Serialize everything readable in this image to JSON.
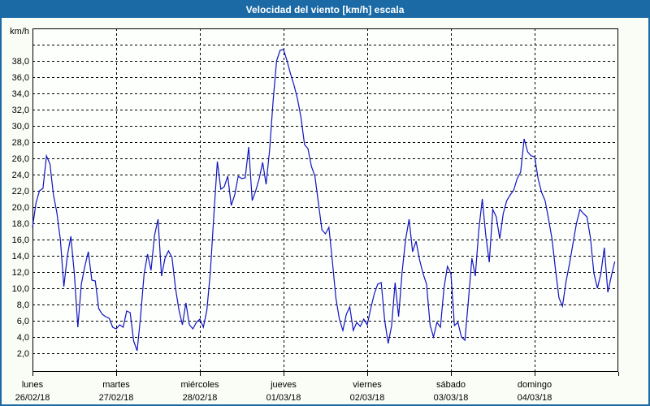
{
  "window": {
    "title": "Velocidad del viento [km/h] escala"
  },
  "chart_data": {
    "type": "line",
    "title": "Velocidad del viento [km/h] escala",
    "xlabel": "",
    "ylabel": "km/h",
    "ylim": [
      0,
      42
    ],
    "grid": "dashed-horizontal-and-day-boundaries",
    "legend_position": "none",
    "decimal_separator": ",",
    "points_per_day": 24,
    "x_unit": "hour",
    "y_axis": {
      "gridline_values": [
        40,
        38,
        36,
        34,
        32,
        30,
        28,
        26,
        24,
        22,
        20,
        18,
        16,
        14,
        12,
        10,
        8,
        6,
        4,
        2
      ],
      "tick_values": [
        38,
        36,
        34,
        32,
        30,
        28,
        26,
        24,
        22,
        20,
        18,
        16,
        14,
        12,
        10,
        8,
        6,
        4,
        2
      ],
      "tick_labels": [
        "38,0",
        "36,0",
        "34,0",
        "32,0",
        "30,0",
        "28,0",
        "26,0",
        "24,0",
        "22,0",
        "20,0",
        "18,0",
        "16,0",
        "14,0",
        "12,0",
        "10,0",
        "8,0",
        "6,0",
        "4,0",
        "2,0"
      ]
    },
    "days": [
      {
        "name": "lunes",
        "date": "26/02/18"
      },
      {
        "name": "martes",
        "date": "27/02/18"
      },
      {
        "name": "miércoles",
        "date": "28/02/18"
      },
      {
        "name": "jueves",
        "date": "01/03/18"
      },
      {
        "name": "viernes",
        "date": "02/03/18"
      },
      {
        "name": "sábado",
        "date": "03/03/18"
      },
      {
        "name": "domingo",
        "date": "04/03/18"
      }
    ],
    "series": [
      {
        "name": "Velocidad del viento",
        "values": [
          17.5,
          20.5,
          22.0,
          22.3,
          26.3,
          25.3,
          21.5,
          19.3,
          16.0,
          10.2,
          14.0,
          16.4,
          11.8,
          5.2,
          10.5,
          12.7,
          14.5,
          11.0,
          10.9,
          7.5,
          6.8,
          6.5,
          6.3,
          5.2,
          5.0,
          5.5,
          5.2,
          7.2,
          7.0,
          3.5,
          2.3,
          6.5,
          11.7,
          14.2,
          12.2,
          16.5,
          18.5,
          11.5,
          13.7,
          14.6,
          13.8,
          10.0,
          7.3,
          5.5,
          8.2,
          5.5,
          5.0,
          5.8,
          6.2,
          5.2,
          7.3,
          12.0,
          19.0,
          25.6,
          22.2,
          22.5,
          23.8,
          20.2,
          21.5,
          23.8,
          23.5,
          23.6,
          27.4,
          20.8,
          22.0,
          23.5,
          25.5,
          22.8,
          27.0,
          33.0,
          38.0,
          39.3,
          39.4,
          38.0,
          36.4,
          35.0,
          33.3,
          31.0,
          27.7,
          27.2,
          25.0,
          23.8,
          20.5,
          17.2,
          16.7,
          17.5,
          13.3,
          8.8,
          6.2,
          4.8,
          6.8,
          7.7,
          4.8,
          5.8,
          5.3,
          6.2,
          5.5,
          7.5,
          9.3,
          10.5,
          10.7,
          6.0,
          3.2,
          5.4,
          10.7,
          6.5,
          12.0,
          16.0,
          18.5,
          14.5,
          15.8,
          13.5,
          11.8,
          10.5,
          5.5,
          4.0,
          5.8,
          5.2,
          10.0,
          12.7,
          11.8,
          5.4,
          5.8,
          4.0,
          3.6,
          8.5,
          13.7,
          11.5,
          17.2,
          21.0,
          16.5,
          13.2,
          19.7,
          18.8,
          16.1,
          19.2,
          20.8,
          21.5,
          22.1,
          23.5,
          24.3,
          28.4,
          26.8,
          26.3,
          26.2,
          23.5,
          21.8,
          20.8,
          18.5,
          16.0,
          12.2,
          8.8,
          7.8,
          10.8,
          13.0,
          15.5,
          18.0,
          19.7,
          19.2,
          18.8,
          16.2,
          11.8,
          10.0,
          11.8,
          15.0,
          9.5,
          11.5,
          13.3
        ]
      }
    ],
    "colors": {
      "frame_accent": "#1b6aa5",
      "title_text": "#ffffff",
      "line": "#1012c0",
      "page_background": "#fafdf6",
      "plot_background": "#fdfffc",
      "grid": "#000000",
      "label_text": "#000000"
    }
  }
}
